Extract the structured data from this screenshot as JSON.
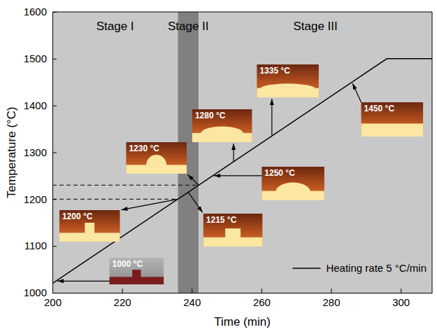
{
  "chart_data": {
    "type": "line",
    "x_label": "Time (min)",
    "y_label": "Temperature (°C)",
    "xlim": [
      200,
      309
    ],
    "xticks": [
      200,
      220,
      240,
      260,
      280,
      300
    ],
    "ylim": [
      1000,
      1600
    ],
    "yticks": [
      1000,
      1100,
      1200,
      1300,
      1400,
      1500,
      1600
    ],
    "grid": false,
    "legend": "lower right",
    "series": [
      {
        "name": "Heating rate 5 °C/min",
        "color": "#000000",
        "line_style": "solid",
        "x": [
          200,
          296,
          309
        ],
        "values": [
          1020,
          1500,
          1500
        ]
      }
    ],
    "stages": [
      {
        "name": "Stage I",
        "x": [
          200,
          236
        ],
        "color": "#c8c8c8"
      },
      {
        "name": "Stage II",
        "x": [
          236,
          242
        ],
        "color": "#808080"
      },
      {
        "name": "Stage III",
        "x": [
          242,
          309
        ],
        "color": "#c8c8c8"
      }
    ],
    "reference_lines": [
      {
        "y": 1200,
        "x": [
          200,
          236
        ],
        "line_style": "dashed"
      },
      {
        "y": 1230,
        "x": [
          200,
          242
        ],
        "line_style": "dashed"
      }
    ],
    "annotations": [
      {
        "text": "1000 °C",
        "x": 201,
        "y": 1025
      },
      {
        "text": "1200 °C",
        "x": 236,
        "y": 1200
      },
      {
        "text": "1215 °C",
        "x": 239,
        "y": 1215
      },
      {
        "text": "1230 °C",
        "x": 242,
        "y": 1230
      },
      {
        "text": "1250 °C",
        "x": 246,
        "y": 1250
      },
      {
        "text": "1280 °C",
        "x": 252,
        "y": 1280
      },
      {
        "text": "1335 °C",
        "x": 263,
        "y": 1335
      },
      {
        "text": "1450 °C",
        "x": 286,
        "y": 1450
      }
    ]
  }
}
